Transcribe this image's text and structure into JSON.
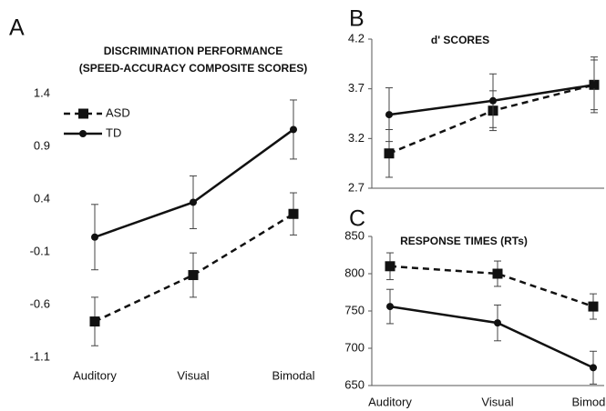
{
  "chart_data": [
    {
      "type": "line",
      "panel": "A",
      "title": [
        "DISCRIMINATION PERFORMANCE",
        "(SPEED-ACCURACY COMPOSITE SCORES)"
      ],
      "categories": [
        "Auditory",
        "Visual",
        "Bimodal"
      ],
      "series": [
        {
          "name": "ASD",
          "color": "#111111",
          "line_style": "dashed",
          "marker": "square",
          "values": [
            -0.76,
            -0.32,
            0.26
          ],
          "errors": [
            0.23,
            0.21,
            0.2
          ]
        },
        {
          "name": "TD",
          "color": "#111111",
          "line_style": "solid",
          "marker": "circle",
          "values": [
            0.04,
            0.37,
            1.06
          ],
          "errors": [
            0.31,
            0.25,
            0.28
          ]
        }
      ],
      "ylim": [
        -1.1,
        1.4
      ],
      "yticks": [
        1.4,
        0.9,
        0.4,
        -0.1,
        -0.6,
        -1.1
      ],
      "legend": "upper left"
    },
    {
      "type": "line",
      "panel": "B",
      "title": [
        "d' SCORES"
      ],
      "categories": [
        null,
        null,
        null
      ],
      "series": [
        {
          "color": "#111111",
          "line_style": "dashed",
          "marker": "square",
          "values": [
            3.05,
            3.48,
            3.74
          ],
          "errors": [
            0.24,
            0.2,
            0.28
          ]
        },
        {
          "color": "#111111",
          "line_style": "solid",
          "marker": "circle",
          "values": [
            3.44,
            3.58,
            3.74
          ],
          "errors": [
            0.27,
            0.27,
            0.25
          ]
        }
      ],
      "ylim": [
        2.7,
        4.2
      ],
      "yticks": [
        4.2,
        3.7,
        3.2,
        2.7
      ]
    },
    {
      "type": "line",
      "panel": "C",
      "title": [
        "RESPONSE TIMES (RTs)"
      ],
      "categories": [
        "Auditory",
        "Visual",
        "Bimodal"
      ],
      "series": [
        {
          "color": "#111111",
          "line_style": "dashed",
          "marker": "square",
          "values": [
            810,
            800,
            756
          ],
          "errors": [
            18,
            17,
            17
          ]
        },
        {
          "color": "#111111",
          "line_style": "solid",
          "marker": "circle",
          "values": [
            756,
            734,
            674
          ],
          "errors": [
            23,
            24,
            22
          ]
        }
      ],
      "ylim": [
        650,
        850
      ],
      "yticks": [
        850,
        800,
        750,
        700,
        650
      ]
    }
  ]
}
